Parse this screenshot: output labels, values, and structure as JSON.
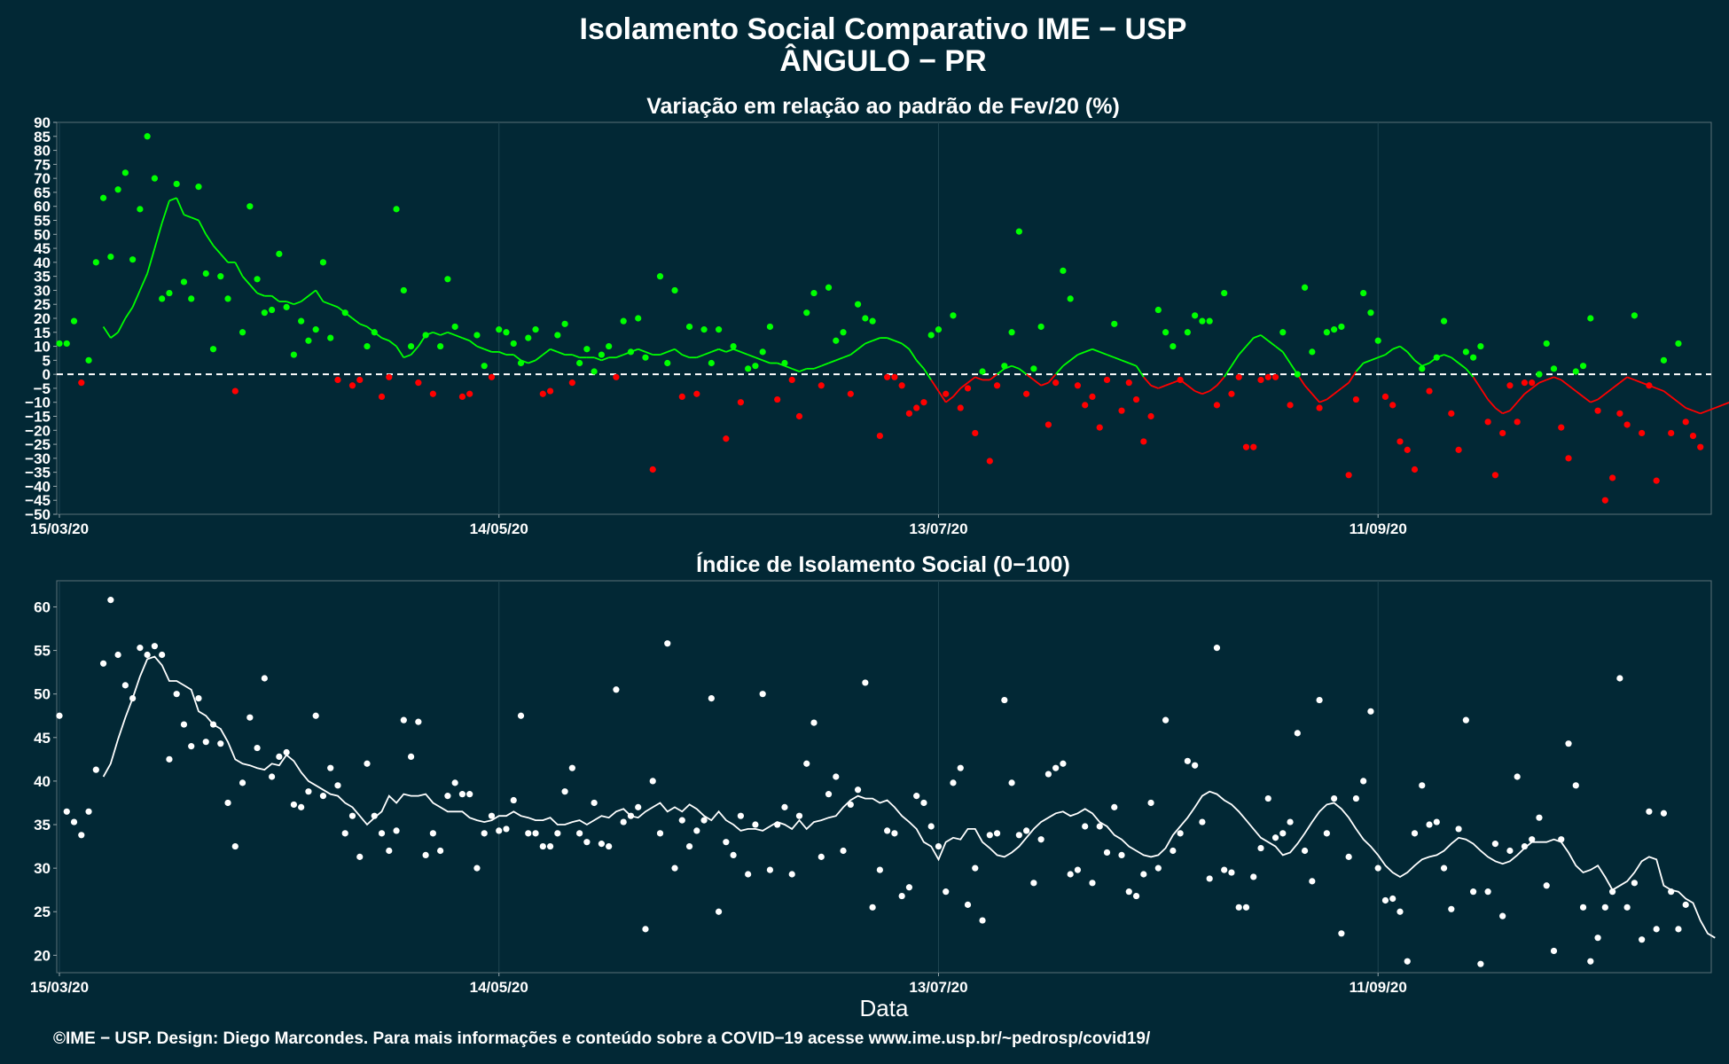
{
  "chart_data": [
    {
      "type": "scatter",
      "title": "Isolamento Social Comparativo IME − USP",
      "subtitle": "ÂNGULO − PR",
      "panel_title": "Variação em relação ao padrão de Fev/20 (%)",
      "xlabel": "",
      "ylabel": "",
      "x_start": "15/03/20",
      "x_end": "26/10/20",
      "x_ticks": [
        "15/03/20",
        "14/05/20",
        "13/07/20",
        "11/09/20"
      ],
      "y_ticks": [
        -50,
        -45,
        -40,
        -35,
        -30,
        -25,
        -20,
        -15,
        -10,
        -5,
        0,
        5,
        10,
        15,
        20,
        25,
        30,
        35,
        40,
        45,
        50,
        55,
        60,
        65,
        70,
        75,
        80,
        85,
        90
      ],
      "ylim": [
        -50,
        90
      ],
      "reference_line": 0,
      "grid": true,
      "colors": {
        "above": "#00ff00",
        "below": "#ff0000",
        "reference": "#ffffff"
      },
      "series": [
        {
          "values": [
            11,
            11,
            19,
            -3,
            5,
            40,
            63,
            42,
            66,
            72,
            41,
            59,
            85,
            70,
            27,
            29,
            68,
            33,
            27,
            67,
            36,
            9,
            35,
            27,
            -6,
            15,
            60,
            34,
            22,
            23,
            43,
            24,
            7,
            19,
            12,
            16,
            40,
            13,
            -2,
            22,
            -4,
            -2,
            10,
            15,
            -8,
            -1,
            59,
            30,
            10,
            -3,
            14,
            -7,
            10,
            34,
            17,
            -8,
            -7,
            14,
            3,
            -1,
            16,
            15,
            11,
            4,
            13,
            16,
            -7,
            -6,
            14,
            18,
            -3,
            4,
            9,
            1,
            7,
            10,
            -1,
            19,
            8,
            20,
            6,
            -34,
            35,
            4,
            30,
            -8,
            17,
            -7,
            16,
            4,
            16,
            -23,
            10,
            -10,
            2,
            3,
            8,
            17,
            -9,
            4,
            -2,
            -15,
            22,
            29,
            -4,
            31,
            12,
            15,
            -7,
            25,
            20,
            19,
            -22,
            -1,
            -1,
            -4,
            -14,
            -12,
            -10,
            14,
            16,
            -7,
            21,
            -12,
            -5,
            -21,
            1,
            -31,
            -4,
            3,
            15,
            51,
            -7,
            2,
            17,
            -18,
            -3,
            37,
            27,
            -4,
            -11,
            -8,
            -19,
            -2,
            18,
            -13,
            -3,
            -9,
            -24,
            -15,
            23,
            15,
            10,
            -2,
            15,
            21,
            19,
            19,
            -11,
            29,
            -7,
            -1,
            -26,
            -26,
            -2,
            -1,
            -1,
            15,
            -11,
            0,
            31,
            8,
            -12,
            15,
            16,
            17,
            -36,
            -9,
            29,
            22,
            12,
            -8,
            -11,
            -24,
            -27,
            -34,
            2,
            -6,
            6,
            19,
            -14,
            -27,
            8,
            6,
            10,
            -17,
            -36,
            -21,
            -4,
            -17,
            -3,
            -3,
            0,
            11,
            2,
            -19,
            -30,
            1,
            3,
            20,
            -13,
            -45,
            -37,
            -14,
            -18,
            21,
            -21,
            -4,
            -38,
            5,
            -21,
            11,
            -17,
            -22,
            -26
          ]
        },
        {
          "values": [
            17,
            13,
            15,
            20,
            24,
            30,
            36,
            45,
            54,
            62,
            63,
            57,
            56,
            55,
            50,
            46,
            43,
            40,
            40,
            35,
            32,
            29,
            28,
            28,
            26,
            26,
            25,
            26,
            28,
            30,
            26,
            25,
            24,
            22,
            20,
            18,
            17,
            15,
            13,
            12,
            10,
            6,
            7,
            10,
            14,
            15,
            14,
            15,
            14,
            13,
            12,
            10,
            9,
            8,
            8,
            7,
            7,
            5,
            4,
            5,
            7,
            9,
            8,
            7,
            7,
            6,
            6,
            6,
            5,
            6,
            6,
            7,
            8,
            9,
            8,
            7,
            7,
            8,
            9,
            7,
            6,
            6,
            7,
            8,
            9,
            8,
            9,
            8,
            7,
            6,
            5,
            4,
            4,
            3,
            2,
            1,
            2,
            2,
            3,
            4,
            5,
            6,
            7,
            9,
            11,
            12,
            13,
            13,
            12,
            11,
            9,
            5,
            2,
            -2,
            -6,
            -10,
            -8,
            -5,
            -3,
            -1,
            -2,
            -2,
            0,
            2,
            3,
            2,
            0,
            -2,
            -4,
            -3,
            0,
            3,
            5,
            7,
            8,
            9,
            8,
            7,
            6,
            5,
            4,
            3,
            -1,
            -4,
            -5,
            -4,
            -3,
            -2,
            -4,
            -6,
            -7,
            -6,
            -4,
            -1,
            3,
            7,
            10,
            13,
            14,
            12,
            10,
            8,
            4,
            0,
            -4,
            -7,
            -10,
            -9,
            -7,
            -5,
            -3,
            1,
            4,
            5,
            6,
            7,
            9,
            10,
            8,
            5,
            3,
            4,
            6,
            7,
            6,
            4,
            2,
            -1,
            -5,
            -9,
            -12,
            -14,
            -13,
            -10,
            -7,
            -5,
            -3,
            -2,
            -1,
            -2,
            -4,
            -6,
            -8,
            -10,
            -9,
            -7,
            -5,
            -3,
            -1,
            -2,
            -3,
            -4,
            -5,
            -6,
            -8,
            -10,
            -12,
            -13,
            -14,
            -13,
            -12,
            -11,
            -10,
            -9,
            -12,
            -15,
            -17,
            -18,
            -19
          ]
        }
      ]
    },
    {
      "type": "scatter",
      "panel_title": "Índice de Isolamento Social (0−100)",
      "xlabel": "Data",
      "ylabel": "",
      "x_start": "15/03/20",
      "x_end": "26/10/20",
      "x_ticks": [
        "15/03/20",
        "14/05/20",
        "13/07/20",
        "11/09/20"
      ],
      "y_ticks": [
        20,
        25,
        30,
        35,
        40,
        45,
        50,
        55,
        60
      ],
      "ylim": [
        18,
        63
      ],
      "grid": true,
      "colors": {
        "points": "#ffffff",
        "line": "#ffffff"
      },
      "series": [
        {
          "values": [
            47.5,
            36.5,
            35.3,
            33.8,
            36.5,
            41.3,
            53.5,
            60.8,
            54.5,
            51.0,
            49.5,
            55.3,
            54.5,
            55.5,
            54.5,
            42.5,
            50.0,
            46.5,
            44.0,
            49.5,
            44.5,
            46.5,
            44.3,
            37.5,
            32.5,
            39.8,
            47.3,
            43.8,
            51.8,
            40.5,
            42.8,
            43.3,
            37.3,
            37.0,
            38.8,
            47.5,
            38.3,
            41.5,
            39.5,
            34.0,
            36.0,
            31.3,
            42.0,
            36.0,
            34.0,
            32.0,
            34.3,
            47.0,
            42.8,
            46.8,
            31.5,
            34.0,
            32.0,
            38.3,
            39.8,
            38.5,
            38.5,
            30.0,
            34.0,
            36.0,
            34.3,
            34.5,
            37.8,
            47.5,
            34.0,
            34.0,
            32.5,
            32.5,
            34.0,
            38.8,
            41.5,
            34.0,
            33.0,
            37.5,
            32.8,
            32.5,
            50.5,
            35.3,
            36.0,
            37.0,
            23.0,
            40.0,
            34.0,
            55.8,
            30.0,
            35.5,
            32.5,
            34.3,
            35.5,
            49.5,
            25.0,
            33.0,
            31.5,
            36.0,
            29.3,
            35.0,
            50.0,
            29.8,
            35.0,
            37.0,
            29.3,
            36.0,
            42.0,
            46.7,
            31.3,
            38.5,
            40.5,
            32.0,
            37.3,
            39.0,
            51.3,
            25.5,
            29.8,
            34.3,
            34.0,
            26.8,
            27.8,
            38.3,
            37.5,
            34.8,
            32.5,
            27.3,
            39.8,
            41.5,
            25.8,
            30.0,
            24.0,
            33.8,
            34.0,
            49.3,
            39.8,
            33.8,
            34.3,
            28.3,
            33.3,
            40.8,
            41.5,
            42.0,
            29.3,
            29.8,
            34.8,
            28.3,
            34.8,
            31.8,
            37.0,
            31.5,
            27.3,
            26.8,
            29.3,
            37.5,
            30.0,
            47.0,
            32.0,
            34.0,
            42.3,
            41.8,
            35.3,
            28.8,
            55.3,
            29.8,
            29.5,
            25.5,
            25.5,
            29.0,
            32.3,
            38.0,
            33.5,
            34.0,
            35.3,
            45.5,
            32.0,
            28.5,
            49.3,
            34.0,
            38.0,
            22.5,
            31.3,
            38.0,
            40.0,
            48.0,
            30.0,
            26.3,
            26.5,
            25.0,
            19.3,
            34.0,
            39.5,
            35.0,
            35.3,
            30.0,
            25.3,
            34.5,
            47.0,
            27.3,
            19.0,
            27.3,
            32.8,
            24.5,
            32.0,
            40.5,
            32.5,
            33.3,
            35.8,
            28.0,
            20.5,
            33.3,
            44.3,
            39.5,
            25.5,
            19.3,
            22.0,
            25.5,
            27.3,
            51.8,
            25.5,
            28.3,
            21.8,
            36.5,
            23.0,
            36.3,
            27.3,
            23.0,
            25.8
          ]
        },
        {
          "values": [
            40.5,
            42.0,
            44.8,
            47.3,
            49.5,
            52.0,
            54.0,
            54.3,
            53.3,
            51.5,
            51.5,
            51.0,
            50.5,
            48.0,
            47.5,
            46.5,
            46.0,
            44.5,
            42.5,
            42.0,
            41.8,
            41.5,
            41.3,
            42.0,
            41.8,
            43.0,
            42.3,
            41.0,
            40.0,
            39.5,
            39.0,
            38.5,
            38.3,
            37.5,
            37.0,
            36.0,
            35.0,
            35.8,
            36.5,
            38.3,
            37.5,
            38.5,
            38.3,
            38.3,
            38.5,
            37.5,
            37.0,
            36.5,
            36.5,
            36.5,
            35.8,
            35.5,
            35.3,
            35.5,
            36.0,
            36.0,
            36.5,
            36.0,
            35.8,
            35.5,
            35.5,
            35.8,
            35.0,
            35.0,
            35.3,
            35.5,
            35.0,
            35.5,
            36.0,
            35.8,
            36.5,
            36.8,
            36.0,
            35.8,
            36.5,
            37.0,
            37.5,
            36.5,
            37.0,
            36.5,
            37.3,
            36.8,
            36.0,
            35.5,
            36.5,
            35.5,
            35.0,
            34.3,
            34.5,
            34.5,
            34.3,
            34.8,
            35.3,
            35.0,
            34.5,
            35.5,
            34.5,
            35.3,
            35.5,
            35.8,
            36.0,
            37.0,
            37.8,
            38.3,
            38.0,
            38.0,
            37.5,
            37.8,
            37.0,
            36.0,
            35.3,
            34.5,
            33.0,
            32.5,
            31.0,
            33.0,
            33.5,
            33.3,
            34.5,
            34.5,
            33.0,
            32.3,
            31.5,
            31.3,
            31.8,
            32.5,
            33.5,
            34.5,
            35.3,
            35.8,
            36.3,
            36.5,
            36.0,
            36.3,
            36.8,
            36.3,
            35.3,
            34.8,
            33.8,
            33.3,
            32.5,
            32.0,
            31.5,
            31.3,
            31.5,
            32.3,
            33.8,
            34.8,
            35.8,
            37.0,
            38.3,
            38.8,
            38.5,
            37.8,
            37.3,
            36.5,
            35.5,
            34.5,
            33.5,
            33.0,
            32.5,
            31.5,
            31.8,
            32.8,
            34.0,
            35.3,
            36.5,
            37.3,
            37.5,
            36.8,
            35.8,
            34.5,
            33.3,
            32.5,
            31.5,
            30.3,
            29.5,
            29.0,
            29.5,
            30.3,
            31.0,
            31.3,
            31.5,
            32.0,
            32.8,
            33.5,
            33.3,
            32.8,
            32.0,
            31.3,
            30.8,
            30.5,
            30.8,
            31.5,
            32.3,
            33.0,
            33.0,
            33.0,
            33.3,
            33.0,
            31.8,
            30.3,
            29.5,
            29.8,
            30.3,
            29.0,
            27.5,
            28.0,
            28.5,
            29.5,
            30.8,
            31.3,
            31.0,
            28.0,
            27.5,
            27.3,
            26.5,
            26.0,
            24.0,
            22.5,
            22.0
          ]
        }
      ]
    }
  ],
  "footer": "©IME − USP. Design: Diego Marcondes. Para mais informações e conteúdo sobre a COVID−19 acesse www.ime.usp.br/~pedrosp/covid19/"
}
